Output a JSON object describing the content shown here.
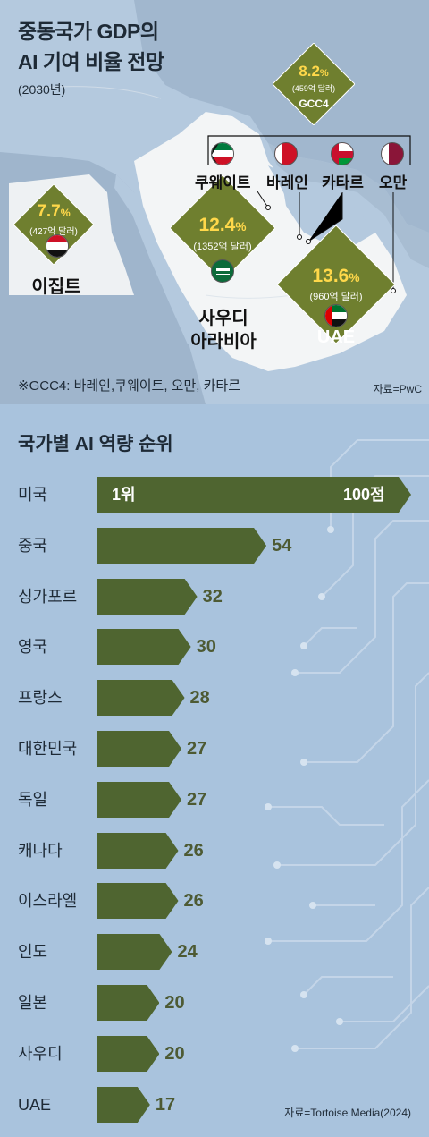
{
  "map": {
    "title_line1": "중동국가 GDP의",
    "title_line2": "AI 기여 비율 전망",
    "subtitle": "(2030년)",
    "note": "※GCC4: 바레인,쿠웨이트, 오만, 카타르",
    "source": "자료=PwC",
    "regions": [
      {
        "id": "gcc4",
        "pct": "8.2",
        "unit": "%",
        "amount": "(459억 달러)",
        "label": "GCC4"
      },
      {
        "id": "egypt",
        "pct": "7.7",
        "unit": "%",
        "amount": "(427억 달러)",
        "label": "이집트"
      },
      {
        "id": "saudi",
        "pct": "12.4",
        "unit": "%",
        "amount": "(1352억 달러)",
        "label_line1": "사우디",
        "label_line2": "아라비아"
      },
      {
        "id": "uae",
        "pct": "13.6",
        "unit": "%",
        "amount": "(960억 달러)",
        "label": "UAE"
      }
    ],
    "gcc_countries": [
      "쿠웨이트",
      "바레인",
      "카타르",
      "오만"
    ]
  },
  "chart_data": {
    "type": "bar",
    "title": "국가별 AI 역량 순위",
    "categories": [
      "미국",
      "중국",
      "싱가포르",
      "영국",
      "프랑스",
      "대한민국",
      "독일",
      "캐나다",
      "이스라엘",
      "인도",
      "일본",
      "사우디",
      "UAE"
    ],
    "values": [
      100,
      54,
      32,
      30,
      28,
      27,
      27,
      26,
      26,
      24,
      20,
      20,
      17
    ],
    "value_labels": [
      "100점",
      "54",
      "32",
      "30",
      "28",
      "27",
      "27",
      "26",
      "26",
      "24",
      "20",
      "20",
      "17"
    ],
    "top_rank_label": "1위",
    "source": "자료=Tortoise Media(2024)",
    "bar_color": "#4f6530",
    "orientation": "horizontal"
  },
  "colors": {
    "diamond": "#6f7f2f",
    "pct_text": "#ffd84a",
    "bar": "#4f6530",
    "value_text": "#4d5a33"
  }
}
